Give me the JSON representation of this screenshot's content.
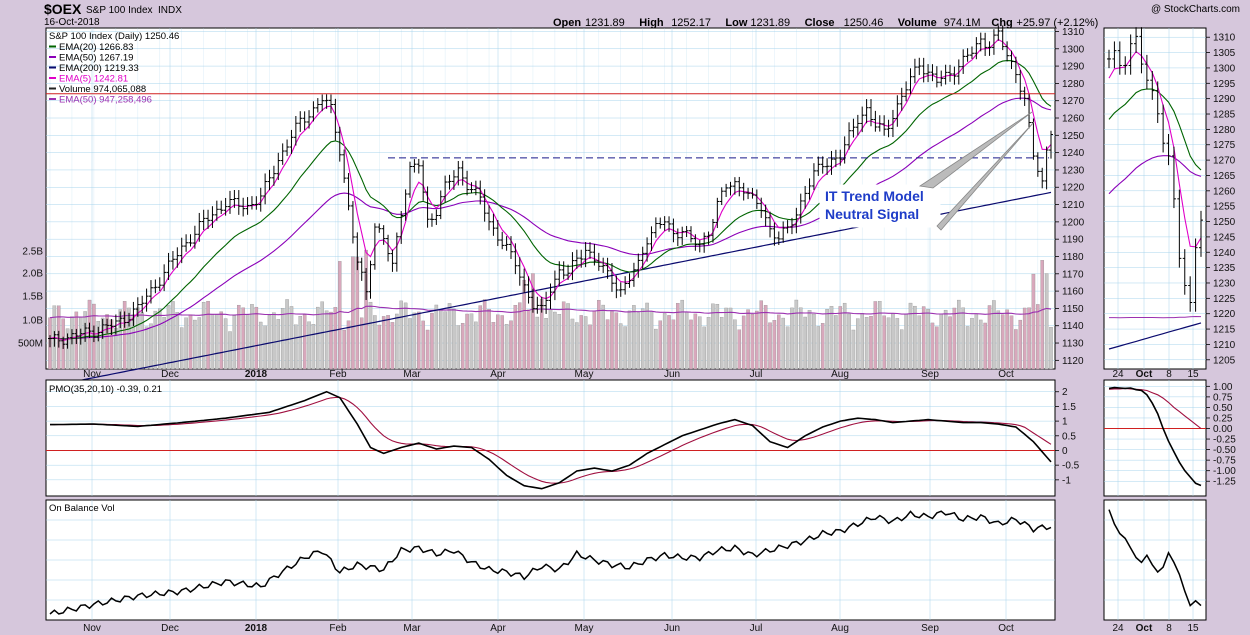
{
  "header": {
    "symbol": "$OEX",
    "name": "S&P 100 Index",
    "exchange": "INDX",
    "date": "16-Oct-2018",
    "copyright": "@ StockCharts.com",
    "quote": [
      {
        "label": "Open",
        "value": "1231.89"
      },
      {
        "label": "High",
        "value": "1252.17"
      },
      {
        "label": "Low",
        "value": "1231.89"
      },
      {
        "label": "Close",
        "value": "1250.46"
      },
      {
        "label": "Volume",
        "value": "974.1M"
      },
      {
        "label": "Chg",
        "value": "+25.97 (+2.12%)"
      }
    ]
  },
  "annotation": {
    "line1": "IT Trend Model",
    "line2": "Neutral Signal"
  },
  "colors": {
    "background": "#d6c7dc",
    "panel": "#ffffff",
    "grid": "#a8d4ec",
    "ema20": "#006400",
    "ema50": "#8b00b8",
    "ema200": "#0a0a6e",
    "ema5": "#e000c8",
    "volume": "#d8a8bc",
    "volume_ema": "#9b30b0",
    "resistance": "#d02020",
    "neckline": "#1a1a8a",
    "pmo_signal": "#a01040",
    "annotation_text": "#1e3cc8"
  },
  "chart_data": [
    {
      "type": "candlestick",
      "title": "S&P 100 Index (Daily) 1250.46",
      "legend": [
        {
          "label": "EMA(20) 1266.83",
          "color": "#006400"
        },
        {
          "label": "EMA(50) 1267.19",
          "color": "#8b00b8"
        },
        {
          "label": "EMA(200) 1219.33",
          "color": "#0a0a6e"
        },
        {
          "label": "EMA(5) 1242.81",
          "color": "#e000c8"
        },
        {
          "label": "Volume 974,065,088",
          "color": "#222222"
        },
        {
          "label": "EMA(50) 947,258,496",
          "color": "#9b30b0"
        }
      ],
      "legend_position": "top-left",
      "x_ticks": [
        "Nov",
        "Dec",
        "2018",
        "Feb",
        "Mar",
        "Apr",
        "May",
        "Jun",
        "Jul",
        "Aug",
        "Sep",
        "Oct"
      ],
      "y_range": [
        1115,
        1312
      ],
      "y_ticks": [
        1120,
        1130,
        1140,
        1150,
        1160,
        1170,
        1180,
        1190,
        1200,
        1210,
        1220,
        1230,
        1240,
        1250,
        1260,
        1270,
        1280,
        1290,
        1300,
        1310
      ],
      "volume_ticks": [
        "500M",
        "1.0B",
        "1.5B",
        "2.0B",
        "2.5B"
      ],
      "volume_range": [
        0,
        5000
      ],
      "horizontal_lines": [
        {
          "value": 1274,
          "style": "solid"
        },
        {
          "value": 1237,
          "style": "dashed"
        }
      ],
      "anchors": [
        [
          0,
          1131
        ],
        [
          5,
          1134
        ],
        [
          10,
          1137
        ],
        [
          15,
          1141
        ],
        [
          20,
          1150
        ],
        [
          25,
          1167
        ],
        [
          30,
          1185
        ],
        [
          35,
          1200
        ],
        [
          40,
          1211
        ],
        [
          45,
          1209
        ],
        [
          48,
          1214
        ],
        [
          52,
          1236
        ],
        [
          57,
          1258
        ],
        [
          60,
          1265
        ],
        [
          62,
          1271
        ],
        [
          64,
          1265
        ],
        [
          66,
          1242
        ],
        [
          68,
          1208
        ],
        [
          70,
          1176
        ],
        [
          72,
          1160
        ],
        [
          74,
          1198
        ],
        [
          76,
          1190
        ],
        [
          78,
          1174
        ],
        [
          80,
          1207
        ],
        [
          82,
          1230
        ],
        [
          84,
          1233
        ],
        [
          86,
          1200
        ],
        [
          88,
          1207
        ],
        [
          90,
          1220
        ],
        [
          93,
          1230
        ],
        [
          95,
          1222
        ],
        [
          98,
          1213
        ],
        [
          100,
          1200
        ],
        [
          103,
          1188
        ],
        [
          106,
          1176
        ],
        [
          108,
          1163
        ],
        [
          110,
          1152
        ],
        [
          112,
          1148
        ],
        [
          114,
          1162
        ],
        [
          116,
          1172
        ],
        [
          118,
          1170
        ],
        [
          120,
          1178
        ],
        [
          122,
          1185
        ],
        [
          124,
          1178
        ],
        [
          126,
          1172
        ],
        [
          128,
          1167
        ],
        [
          130,
          1160
        ],
        [
          132,
          1167
        ],
        [
          134,
          1175
        ],
        [
          136,
          1191
        ],
        [
          138,
          1197
        ],
        [
          140,
          1200
        ],
        [
          142,
          1193
        ],
        [
          144,
          1196
        ],
        [
          146,
          1189
        ],
        [
          148,
          1186
        ],
        [
          150,
          1195
        ],
        [
          152,
          1210
        ],
        [
          154,
          1220
        ],
        [
          156,
          1222
        ],
        [
          158,
          1220
        ],
        [
          160,
          1212
        ],
        [
          162,
          1208
        ],
        [
          164,
          1196
        ],
        [
          166,
          1191
        ],
        [
          168,
          1195
        ],
        [
          170,
          1205
        ],
        [
          172,
          1218
        ],
        [
          174,
          1227
        ],
        [
          176,
          1233
        ],
        [
          178,
          1236
        ],
        [
          180,
          1238
        ],
        [
          182,
          1249
        ],
        [
          184,
          1260
        ],
        [
          186,
          1265
        ],
        [
          188,
          1255
        ],
        [
          190,
          1252
        ],
        [
          192,
          1262
        ],
        [
          194,
          1272
        ],
        [
          196,
          1282
        ],
        [
          198,
          1292
        ],
        [
          200,
          1286
        ],
        [
          202,
          1281
        ],
        [
          204,
          1284
        ],
        [
          206,
          1288
        ],
        [
          208,
          1293
        ],
        [
          210,
          1298
        ],
        [
          212,
          1305
        ],
        [
          214,
          1303
        ],
        [
          216,
          1308
        ],
        [
          218,
          1296
        ],
        [
          220,
          1287
        ],
        [
          222,
          1270
        ],
        [
          224,
          1238
        ],
        [
          226,
          1223
        ],
        [
          227,
          1242
        ],
        [
          228,
          1250
        ]
      ],
      "series": [
        {
          "name": "EMA(20)",
          "values": [
            1266.83
          ]
        },
        {
          "name": "EMA(50)",
          "values": [
            1267.19
          ]
        },
        {
          "name": "EMA(200)",
          "values": [
            1219.33
          ]
        },
        {
          "name": "EMA(5)",
          "values": [
            1242.81
          ]
        }
      ],
      "inset": {
        "x_ticks": [
          "24",
          "Oct",
          "8",
          "15"
        ],
        "y_range": [
          1202,
          1313
        ],
        "y_ticks": [
          1205,
          1210,
          1215,
          1220,
          1225,
          1230,
          1235,
          1240,
          1245,
          1250,
          1255,
          1260,
          1265,
          1270,
          1275,
          1280,
          1285,
          1290,
          1295,
          1300,
          1305,
          1310
        ]
      }
    },
    {
      "type": "line",
      "title": "PMO(35,20,10) -0.39, 0.21",
      "y_range": [
        -1.55,
        2.4
      ],
      "y_ticks": [
        -1.0,
        -0.5,
        0.0,
        0.5,
        1.0,
        1.5,
        2.0
      ],
      "zero_line": 0,
      "anchors": [
        [
          0,
          0.88
        ],
        [
          10,
          0.9
        ],
        [
          20,
          0.82
        ],
        [
          30,
          0.95
        ],
        [
          40,
          1.1
        ],
        [
          50,
          1.3
        ],
        [
          58,
          1.7
        ],
        [
          63,
          2.0
        ],
        [
          66,
          1.8
        ],
        [
          70,
          0.9
        ],
        [
          73,
          0.1
        ],
        [
          76,
          -0.1
        ],
        [
          80,
          0.1
        ],
        [
          84,
          0.25
        ],
        [
          88,
          0.05
        ],
        [
          92,
          0.15
        ],
        [
          96,
          0.1
        ],
        [
          100,
          -0.3
        ],
        [
          104,
          -0.85
        ],
        [
          108,
          -1.2
        ],
        [
          112,
          -1.3
        ],
        [
          116,
          -1.1
        ],
        [
          120,
          -0.7
        ],
        [
          124,
          -0.6
        ],
        [
          128,
          -0.7
        ],
        [
          132,
          -0.5
        ],
        [
          136,
          -0.1
        ],
        [
          140,
          0.2
        ],
        [
          144,
          0.5
        ],
        [
          148,
          0.7
        ],
        [
          152,
          0.9
        ],
        [
          156,
          1.05
        ],
        [
          160,
          0.85
        ],
        [
          164,
          0.3
        ],
        [
          168,
          0.1
        ],
        [
          172,
          0.5
        ],
        [
          176,
          0.8
        ],
        [
          180,
          1.0
        ],
        [
          184,
          1.1
        ],
        [
          188,
          1.05
        ],
        [
          192,
          0.95
        ],
        [
          196,
          1.0
        ],
        [
          200,
          1.05
        ],
        [
          204,
          1.0
        ],
        [
          208,
          0.95
        ],
        [
          212,
          0.95
        ],
        [
          216,
          0.9
        ],
        [
          220,
          0.8
        ],
        [
          224,
          0.3
        ],
        [
          228,
          -0.39
        ]
      ],
      "series": [
        {
          "name": "PMO",
          "values": [
            -0.39
          ]
        },
        {
          "name": "Signal",
          "values": [
            0.21
          ]
        }
      ],
      "inset": {
        "y_range": [
          -1.6,
          1.15
        ],
        "y_ticks": [
          -1.25,
          -1.0,
          -0.75,
          -0.5,
          -0.25,
          0.0,
          0.25,
          0.5,
          0.75,
          1.0
        ]
      }
    },
    {
      "type": "line",
      "title": "On Balance Vol",
      "y_range": [
        0,
        100
      ],
      "x_ticks": [
        "Nov",
        "Dec",
        "2018",
        "Feb",
        "Mar",
        "Apr",
        "May",
        "Jun",
        "Jul",
        "Aug",
        "Sep",
        "Oct"
      ],
      "anchors": [
        [
          0,
          5
        ],
        [
          10,
          13
        ],
        [
          20,
          20
        ],
        [
          30,
          24
        ],
        [
          40,
          32
        ],
        [
          48,
          28
        ],
        [
          52,
          38
        ],
        [
          58,
          52
        ],
        [
          62,
          58
        ],
        [
          66,
          40
        ],
        [
          70,
          46
        ],
        [
          76,
          42
        ],
        [
          80,
          58
        ],
        [
          84,
          60
        ],
        [
          88,
          55
        ],
        [
          92,
          58
        ],
        [
          96,
          48
        ],
        [
          100,
          42
        ],
        [
          104,
          40
        ],
        [
          108,
          36
        ],
        [
          112,
          45
        ],
        [
          116,
          42
        ],
        [
          120,
          55
        ],
        [
          124,
          50
        ],
        [
          128,
          46
        ],
        [
          132,
          44
        ],
        [
          136,
          50
        ],
        [
          140,
          54
        ],
        [
          144,
          52
        ],
        [
          148,
          52
        ],
        [
          152,
          58
        ],
        [
          156,
          60
        ],
        [
          160,
          54
        ],
        [
          164,
          58
        ],
        [
          168,
          62
        ],
        [
          172,
          66
        ],
        [
          176,
          72
        ],
        [
          180,
          74
        ],
        [
          184,
          80
        ],
        [
          188,
          86
        ],
        [
          192,
          82
        ],
        [
          196,
          88
        ],
        [
          200,
          86
        ],
        [
          204,
          90
        ],
        [
          208,
          84
        ],
        [
          212,
          86
        ],
        [
          216,
          80
        ],
        [
          220,
          84
        ],
        [
          224,
          76
        ],
        [
          228,
          78
        ]
      ],
      "inset": {
        "x_ticks": [
          "24",
          "Oct",
          "8",
          "15"
        ]
      }
    }
  ]
}
